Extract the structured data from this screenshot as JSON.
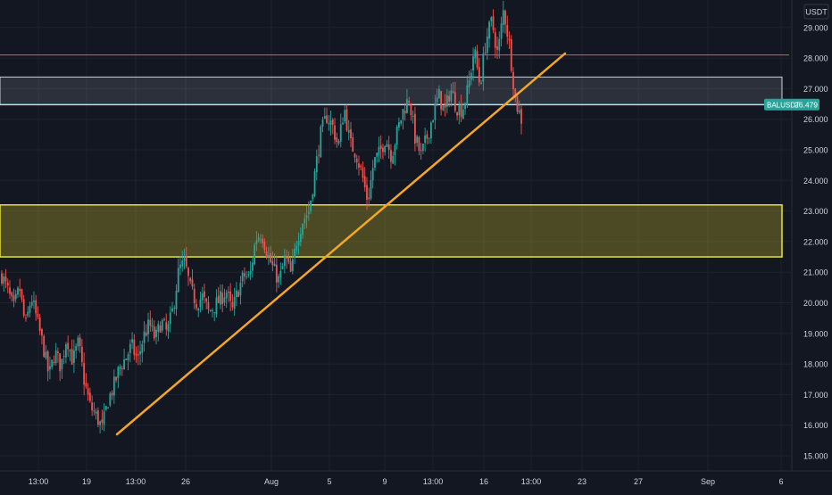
{
  "chart_data": {
    "type": "candlestick",
    "symbol": "BALUSDT",
    "currency_label": "USDT",
    "last_price": "26.479",
    "y_ticks": [
      "15.000",
      "16.000",
      "17.000",
      "18.000",
      "19.000",
      "20.000",
      "21.000",
      "22.000",
      "23.000",
      "24.000",
      "25.000",
      "26.000",
      "27.000",
      "28.000",
      "29.000"
    ],
    "ylim": [
      14.5,
      29.8
    ],
    "x_ticks": [
      "13:00",
      "19",
      "13:00",
      "26",
      "Aug",
      "5",
      "9",
      "13:00",
      "16",
      "13:00",
      "23",
      "27",
      "Sep",
      "6"
    ],
    "colors": {
      "background": "#131722",
      "up": "#26a69a",
      "down": "#ef5350",
      "trendline": "#f5a623",
      "demand_zone": "#e8e33a",
      "supply_zone": "#c7cfd8",
      "resistance_line": "#ef5350",
      "price_line": "#b2ebf2"
    },
    "horizontal_line": 28.1,
    "supply_zone": [
      26.47,
      27.38
    ],
    "demand_zone": [
      21.5,
      23.2
    ],
    "trendline": [
      {
        "from_price": 15.7,
        "to_price": 28.15
      }
    ],
    "price_path": [
      20.9,
      20.4,
      19.8,
      20.5,
      19.2,
      20.2,
      19.4,
      18.6,
      17.6,
      18.4,
      17.9,
      18.9,
      18.1,
      18.7,
      17.4,
      16.6,
      16.3,
      15.9,
      16.8,
      17.3,
      17.9,
      18.2,
      18.6,
      18.1,
      18.9,
      19.3,
      18.8,
      19.4,
      19.0,
      19.8,
      21.1,
      21.3,
      20.4,
      20.0,
      20.2,
      19.7,
      19.9,
      20.1,
      20.4,
      19.7,
      20.4,
      20.9,
      20.8,
      22.1,
      22.3,
      21.6,
      21.1,
      20.7,
      21.5,
      20.9,
      22.1,
      22.7,
      23.0,
      24.2,
      25.5,
      26.1,
      25.8,
      25.1,
      26.4,
      25.2,
      24.9,
      24.2,
      23.3,
      24.6,
      24.9,
      25.4,
      24.8,
      25.6,
      26.3,
      26.7,
      25.4,
      24.8,
      25.4,
      26.1,
      26.8,
      26.2,
      27.0,
      26.4,
      26.3,
      27.0,
      28.3,
      27.1,
      28.6,
      29.2,
      28.1,
      29.6,
      28.4,
      26.6,
      26.0
    ]
  }
}
